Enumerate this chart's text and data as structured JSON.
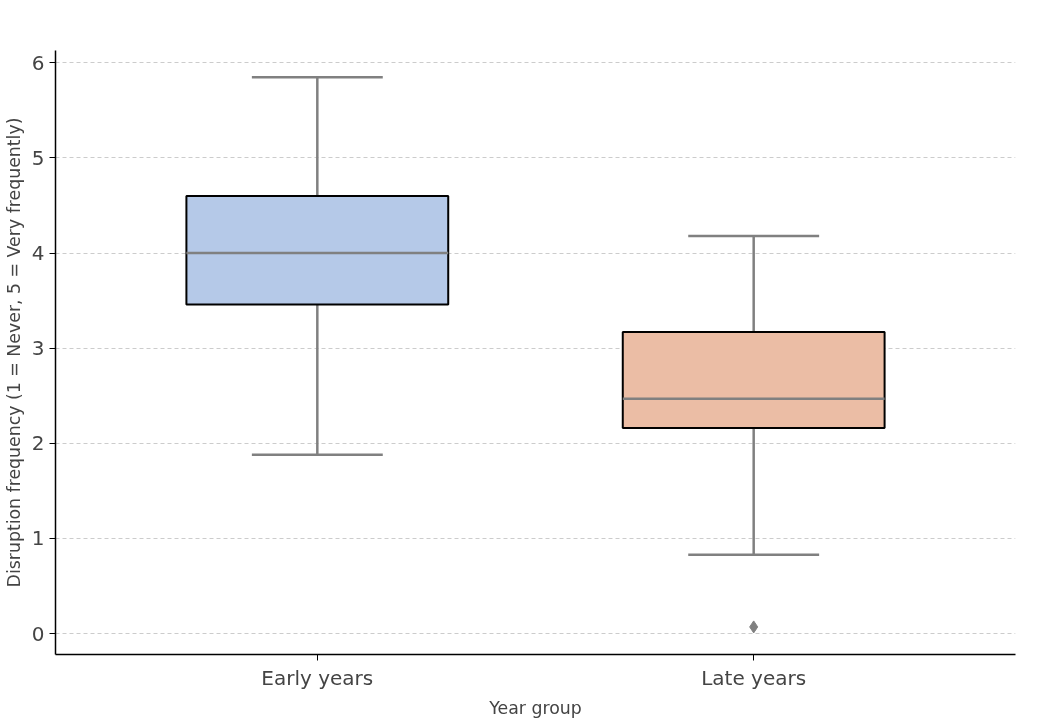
{
  "chart_data": {
    "type": "box",
    "xlabel": "Year group",
    "ylabel": "Disruption frequency (1 = Never, 5 = Very frequently)",
    "categories": [
      "Early years",
      "Late years"
    ],
    "colors": [
      "#b5c9e8",
      "#ebbda5"
    ],
    "boxes": [
      {
        "low": 1.88,
        "q1": 3.46,
        "median": 4.0,
        "q3": 4.6,
        "high": 5.85
      },
      {
        "low": 0.83,
        "q1": 2.16,
        "median": 2.47,
        "q3": 3.17,
        "high": 4.18,
        "outliers": [
          0.07
        ]
      }
    ],
    "ylim": [
      -0.22,
      6.13
    ],
    "yticks": [
      0,
      1,
      2,
      3,
      4,
      5,
      6
    ],
    "grid": "y"
  }
}
